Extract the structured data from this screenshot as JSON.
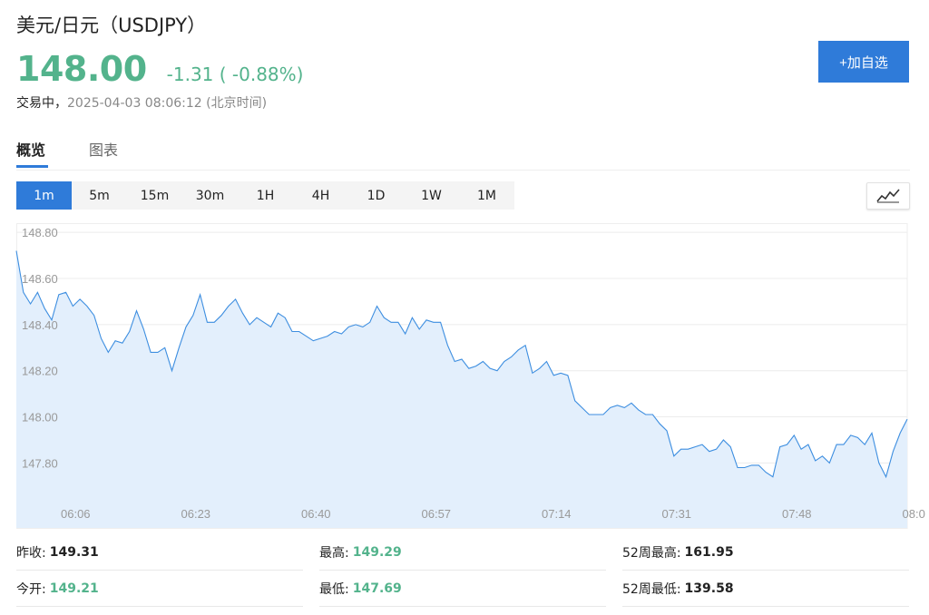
{
  "header": {
    "title": "美元/日元（USDJPY）",
    "price": "148.00",
    "change": "-1.31 ( -0.88%)",
    "status": "交易中，",
    "timestamp": "2025-04-03 08:06:12 (北京时间)",
    "add_watchlist": "+加自选"
  },
  "tabs": [
    {
      "label": "概览",
      "active": true
    },
    {
      "label": "图表",
      "active": false
    }
  ],
  "intervals": [
    {
      "label": "1m",
      "active": true
    },
    {
      "label": "5m",
      "active": false
    },
    {
      "label": "15m",
      "active": false
    },
    {
      "label": "30m",
      "active": false
    },
    {
      "label": "1H",
      "active": false
    },
    {
      "label": "4H",
      "active": false
    },
    {
      "label": "1D",
      "active": false
    },
    {
      "label": "1W",
      "active": false
    },
    {
      "label": "1M",
      "active": false
    }
  ],
  "chart_toggle_icon": "line-chart-icon",
  "colors": {
    "accent": "#2f7bd9",
    "up_green": "#53b38c",
    "line": "#3d8ee0",
    "fill": "#e3effc"
  },
  "chart_data": {
    "type": "area",
    "title": "",
    "xlabel": "",
    "ylabel": "",
    "ylim": [
      147.66,
      148.84
    ],
    "y_ticks": [
      "148.80",
      "148.60",
      "148.40",
      "148.20",
      "148.00",
      "147.80"
    ],
    "x_ticks": [
      "06:06",
      "06:23",
      "06:40",
      "06:57",
      "07:14",
      "07:31",
      "07:48",
      "08:0"
    ],
    "grid": true,
    "legend": "none",
    "series": [
      {
        "values": [
          148.72,
          148.54,
          148.49,
          148.54,
          148.47,
          148.42,
          148.53,
          148.54,
          148.48,
          148.51,
          148.48,
          148.44,
          148.34,
          148.28,
          148.33,
          148.32,
          148.37,
          148.46,
          148.38,
          148.28,
          148.28,
          148.3,
          148.2,
          148.3,
          148.39,
          148.44,
          148.53,
          148.41,
          148.41,
          148.44,
          148.48,
          148.51,
          148.45,
          148.4,
          148.43,
          148.41,
          148.39,
          148.45,
          148.43,
          148.37,
          148.37,
          148.35,
          148.33,
          148.34,
          148.35,
          148.37,
          148.36,
          148.39,
          148.4,
          148.39,
          148.41,
          148.48,
          148.43,
          148.41,
          148.41,
          148.36,
          148.43,
          148.38,
          148.42,
          148.41,
          148.41,
          148.31,
          148.24,
          148.25,
          148.21,
          148.22,
          148.24,
          148.21,
          148.2,
          148.24,
          148.26,
          148.29,
          148.31,
          148.19,
          148.21,
          148.24,
          148.18,
          148.19,
          148.18,
          148.07,
          148.04,
          148.01,
          148.01,
          148.01,
          148.04,
          148.05,
          148.04,
          148.06,
          148.03,
          148.01,
          148.01,
          147.97,
          147.94,
          147.83,
          147.86,
          147.86,
          147.87,
          147.88,
          147.85,
          147.86,
          147.9,
          147.87,
          147.78,
          147.78,
          147.79,
          147.79,
          147.76,
          147.74,
          147.87,
          147.88,
          147.92,
          147.86,
          147.88,
          147.81,
          147.83,
          147.8,
          147.88,
          147.88,
          147.92,
          147.91,
          147.88,
          147.93,
          147.8,
          147.74,
          147.85,
          147.93,
          147.99
        ]
      }
    ]
  },
  "stats": {
    "prev_close_label": "昨收:",
    "prev_close": "149.31",
    "high_label": "最高:",
    "high": "149.29",
    "week52_high_label": "52周最高:",
    "week52_high": "161.95",
    "open_label": "今开:",
    "open": "149.21",
    "low_label": "最低:",
    "low": "147.69",
    "week52_low_label": "52周最低:",
    "week52_low": "139.58"
  }
}
